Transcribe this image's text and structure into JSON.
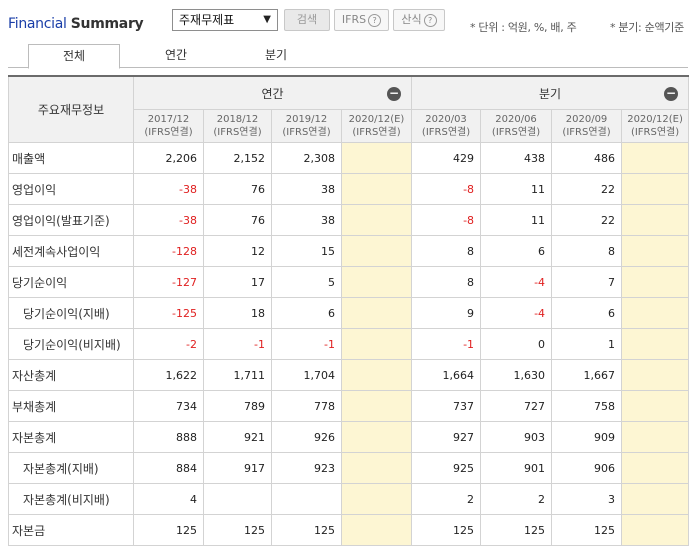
{
  "header": {
    "title_part1": "Financial",
    "title_part2": "Summary",
    "select_value": "주재무제표",
    "search_label": "검색",
    "ifrs_label": "IFRS",
    "calc_label": "산식",
    "help_glyph": "?",
    "unit_note": "* 단위 : 억원, %, 배, 주",
    "period_note": "* 분기: 순액기준"
  },
  "tabs": [
    "전체",
    "연간",
    "분기"
  ],
  "table": {
    "corner": "주요재무정보",
    "group_annual": "연간",
    "group_quarter": "분기",
    "collapse_glyph": "−",
    "columns": [
      {
        "period": "2017/12",
        "basis": "(IFRS연결)"
      },
      {
        "period": "2018/12",
        "basis": "(IFRS연결)"
      },
      {
        "period": "2019/12",
        "basis": "(IFRS연결)"
      },
      {
        "period": "2020/12(E)",
        "basis": "(IFRS연결)"
      },
      {
        "period": "2020/03",
        "basis": "(IFRS연결)"
      },
      {
        "period": "2020/06",
        "basis": "(IFRS연결)"
      },
      {
        "period": "2020/09",
        "basis": "(IFRS연결)"
      },
      {
        "period": "2020/12(E)",
        "basis": "(IFRS연결)"
      }
    ],
    "rows": [
      {
        "label": "매출액",
        "sub": false,
        "values": [
          "2,206",
          "2,152",
          "2,308",
          "",
          "429",
          "438",
          "486",
          ""
        ]
      },
      {
        "label": "영업이익",
        "sub": false,
        "values": [
          "-38",
          "76",
          "38",
          "",
          "-8",
          "11",
          "22",
          ""
        ]
      },
      {
        "label": "영업이익(발표기준)",
        "sub": false,
        "values": [
          "-38",
          "76",
          "38",
          "",
          "-8",
          "11",
          "22",
          ""
        ]
      },
      {
        "label": "세전계속사업이익",
        "sub": false,
        "values": [
          "-128",
          "12",
          "15",
          "",
          "8",
          "6",
          "8",
          ""
        ]
      },
      {
        "label": "당기순이익",
        "sub": false,
        "values": [
          "-127",
          "17",
          "5",
          "",
          "8",
          "-4",
          "7",
          ""
        ]
      },
      {
        "label": "당기순이익(지배)",
        "sub": true,
        "values": [
          "-125",
          "18",
          "6",
          "",
          "9",
          "-4",
          "6",
          ""
        ]
      },
      {
        "label": "당기순이익(비지배)",
        "sub": true,
        "values": [
          "-2",
          "-1",
          "-1",
          "",
          "-1",
          "0",
          "1",
          ""
        ]
      },
      {
        "label": "자산총계",
        "sub": false,
        "values": [
          "1,622",
          "1,711",
          "1,704",
          "",
          "1,664",
          "1,630",
          "1,667",
          ""
        ]
      },
      {
        "label": "부채총계",
        "sub": false,
        "values": [
          "734",
          "789",
          "778",
          "",
          "737",
          "727",
          "758",
          ""
        ]
      },
      {
        "label": "자본총계",
        "sub": false,
        "values": [
          "888",
          "921",
          "926",
          "",
          "927",
          "903",
          "909",
          ""
        ]
      },
      {
        "label": "자본총계(지배)",
        "sub": true,
        "values": [
          "884",
          "917",
          "923",
          "",
          "925",
          "901",
          "906",
          ""
        ]
      },
      {
        "label": "자본총계(비지배)",
        "sub": true,
        "values": [
          "4",
          "",
          "",
          "",
          "2",
          "2",
          "3",
          ""
        ]
      },
      {
        "label": "자본금",
        "sub": false,
        "values": [
          "125",
          "125",
          "125",
          "",
          "125",
          "125",
          "125",
          ""
        ]
      }
    ]
  },
  "colors": {
    "title_blue": "#1a3ea8",
    "negative": "#e02020",
    "estimate_bg": "#fdf6d3",
    "header_bg": "#f1f1f1"
  }
}
